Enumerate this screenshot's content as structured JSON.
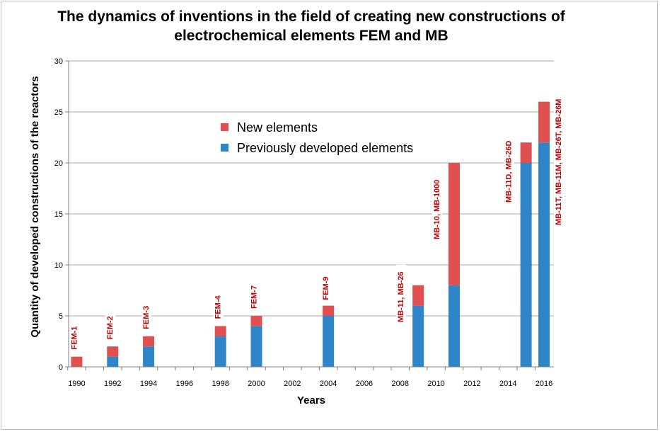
{
  "chart_data": {
    "type": "bar",
    "stacked": true,
    "title": "The dynamics of inventions in the field of creating new constructions of electrochemical elements FEM and MB",
    "xlabel": "Years",
    "ylabel": "Quantity of developed constructions of the reactors",
    "xlim": [
      1990,
      2016
    ],
    "x_ticks": [
      "1990",
      "1992",
      "1994",
      "1996",
      "1998",
      "2000",
      "2002",
      "2004",
      "2006",
      "2008",
      "2010",
      "2012",
      "2014",
      "2016"
    ],
    "ylim": [
      0,
      30
    ],
    "y_ticks": [
      "0",
      "5",
      "10",
      "15",
      "20",
      "25",
      "30"
    ],
    "grid": "horizontal",
    "legend_position": "center-left",
    "colors": {
      "new": "#e05050",
      "previous": "#2e86c8"
    },
    "series": [
      {
        "name": "Previously developed elements",
        "color": "#2e86c8",
        "x": [
          1990,
          1992,
          1994,
          1998,
          2000,
          2004,
          2009,
          2011,
          2015,
          2016
        ],
        "values": [
          0,
          1,
          2,
          3,
          4,
          5,
          6,
          8,
          20,
          22
        ]
      },
      {
        "name": "New elements",
        "color": "#e05050",
        "x": [
          1990,
          1992,
          1994,
          1998,
          2000,
          2004,
          2009,
          2011,
          2015,
          2016
        ],
        "values": [
          1,
          1,
          1,
          1,
          1,
          1,
          2,
          12,
          2,
          4
        ]
      }
    ],
    "annotations": [
      {
        "year": 1990,
        "text": "FEM-1"
      },
      {
        "year": 1992,
        "text": "FEM-2"
      },
      {
        "year": 1994,
        "text": "FEM-3"
      },
      {
        "year": 1998,
        "text": "FEM-4"
      },
      {
        "year": 2000,
        "text": "FEM-7"
      },
      {
        "year": 2004,
        "text": "FEM-9"
      },
      {
        "year": 2009,
        "text": "MB-11, MB-26"
      },
      {
        "year": 2011,
        "text": "MB-10, MB-1000"
      },
      {
        "year": 2015,
        "text": "MB-11D, MB-26D"
      },
      {
        "year": 2016,
        "text": "MB-11T, MB-11M, MB-26T, MB-26M"
      }
    ]
  }
}
